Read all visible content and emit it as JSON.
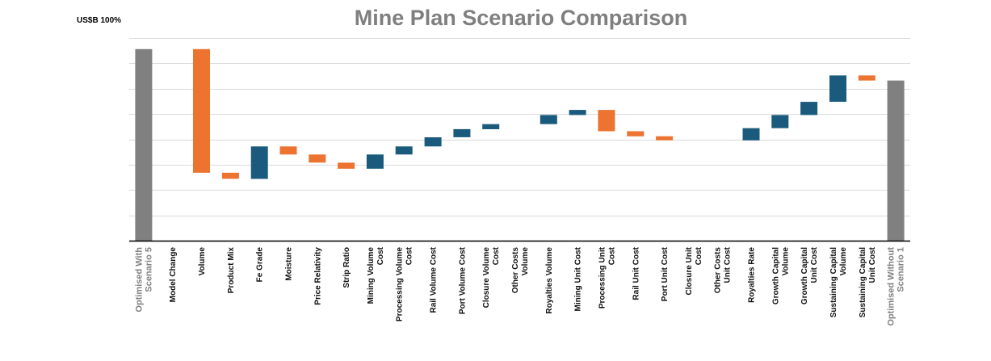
{
  "chart_data": {
    "type": "waterfall",
    "title": "Mine Plan Scenario Comparison",
    "unit_label": "US$B 100%",
    "ylim": [
      0,
      100
    ],
    "grid": true,
    "y_gridlines": [
      12.5,
      25,
      37.5,
      50,
      62.5,
      75,
      87.5,
      100
    ],
    "colors": {
      "total": "#808080",
      "increase": "#1a5a7c",
      "decrease": "#ec7330"
    },
    "categories": [
      "Optimised With Scenario 5",
      "Model Change",
      "Volume",
      "Product Mix",
      "Fe Grade",
      "Moisture",
      "Price Relativity",
      "Strip Ratio",
      "Mining Volume Cost",
      "Processing Volume Cost",
      "Rail Volume Cost",
      "Port Volume Cost",
      "Closure Volume Cost",
      "Other Costs Volume",
      "Royalties Volume",
      "Mining Unit Cost",
      "Processing Unit Cost",
      "Rail Unit Cost",
      "Port Unit Cost",
      "Closure Unit Cost",
      "Other Costs Unit Cost",
      "Royalties Rate",
      "Growth Capital Volume",
      "Growth Capital Unit Cost",
      "Sustaining Capital Volume",
      "Sustaining Capital Unit Cost",
      "Optimised Without Scenario 1"
    ],
    "bars": [
      {
        "kind": "total",
        "low": 0,
        "high": 94.5
      },
      {
        "kind": "none",
        "low": 94.5,
        "high": 94.5
      },
      {
        "kind": "decrease",
        "low": 33.5,
        "high": 94.5
      },
      {
        "kind": "decrease",
        "low": 30.5,
        "high": 33.5
      },
      {
        "kind": "increase",
        "low": 30.5,
        "high": 46.5
      },
      {
        "kind": "decrease",
        "low": 42.5,
        "high": 46.5
      },
      {
        "kind": "decrease",
        "low": 38.5,
        "high": 42.5
      },
      {
        "kind": "decrease",
        "low": 35.5,
        "high": 38.5
      },
      {
        "kind": "increase",
        "low": 35.5,
        "high": 42.5
      },
      {
        "kind": "increase",
        "low": 42.5,
        "high": 46.5
      },
      {
        "kind": "increase",
        "low": 46.5,
        "high": 51
      },
      {
        "kind": "increase",
        "low": 51,
        "high": 55
      },
      {
        "kind": "increase",
        "low": 55,
        "high": 57.5
      },
      {
        "kind": "none",
        "low": 57.5,
        "high": 57.5
      },
      {
        "kind": "increase",
        "low": 57.5,
        "high": 62
      },
      {
        "kind": "increase",
        "low": 62,
        "high": 64.5
      },
      {
        "kind": "decrease",
        "low": 54,
        "high": 64.5
      },
      {
        "kind": "decrease",
        "low": 51.5,
        "high": 54
      },
      {
        "kind": "decrease",
        "low": 49.5,
        "high": 51.5
      },
      {
        "kind": "none",
        "low": 49.5,
        "high": 49.5
      },
      {
        "kind": "none",
        "low": 49.5,
        "high": 49.5
      },
      {
        "kind": "increase",
        "low": 49.5,
        "high": 55.5
      },
      {
        "kind": "increase",
        "low": 55.5,
        "high": 62
      },
      {
        "kind": "increase",
        "low": 62,
        "high": 68.5
      },
      {
        "kind": "increase",
        "low": 68.5,
        "high": 81.5
      },
      {
        "kind": "decrease",
        "low": 79,
        "high": 81.5
      },
      {
        "kind": "total",
        "low": 0,
        "high": 79
      }
    ]
  }
}
